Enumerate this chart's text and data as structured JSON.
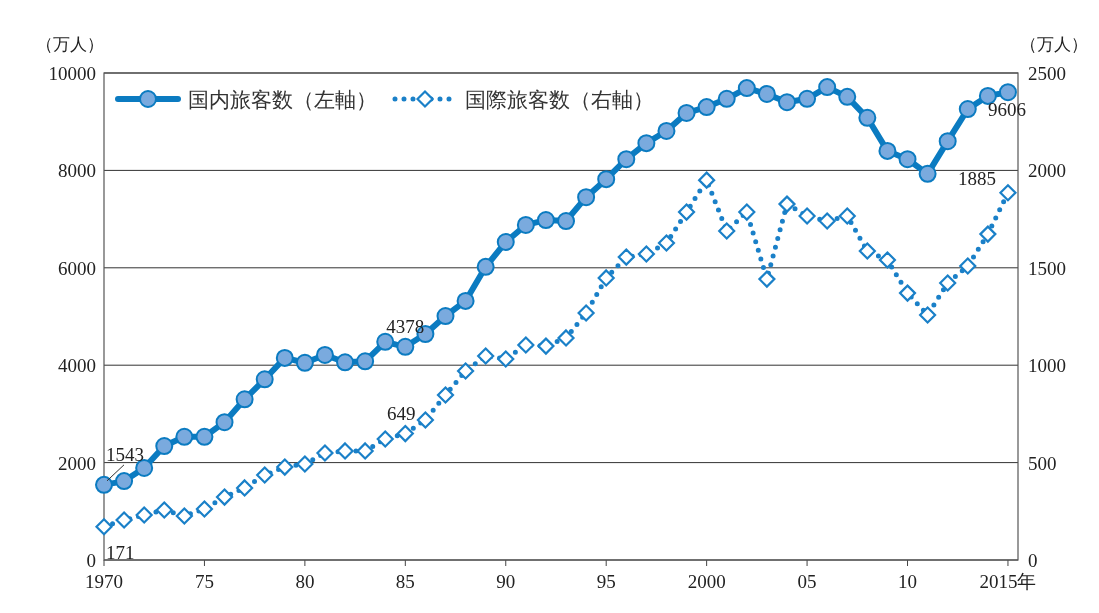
{
  "chart_data": {
    "type": "line",
    "ylabel": "（万人）",
    "y2label": "（万人）",
    "x": [
      1970,
      1971,
      1972,
      1973,
      1974,
      1975,
      1976,
      1977,
      1978,
      1979,
      1980,
      1981,
      1982,
      1983,
      1984,
      1985,
      1986,
      1987,
      1988,
      1989,
      1990,
      1991,
      1992,
      1993,
      1994,
      1995,
      1996,
      1997,
      1998,
      1999,
      2000,
      2001,
      2002,
      2003,
      2004,
      2005,
      2006,
      2007,
      2008,
      2009,
      2010,
      2011,
      2012,
      2013,
      2014,
      2015
    ],
    "xlim": [
      1970,
      2015.5
    ],
    "xticks": [
      1970,
      {
        "value": 1975,
        "label": "75"
      },
      {
        "value": 1980,
        "label": "80"
      },
      {
        "value": 1985,
        "label": "85"
      },
      {
        "value": 1990,
        "label": "90"
      },
      {
        "value": 1995,
        "label": "95"
      },
      2000,
      {
        "value": 2005,
        "label": "05"
      },
      {
        "value": 2010,
        "label": "10"
      },
      {
        "value": 2015,
        "label": "2015年"
      }
    ],
    "ylim": [
      0,
      10000
    ],
    "yticks": [
      0,
      2000,
      4000,
      6000,
      8000,
      10000
    ],
    "y2lim": [
      0,
      2500
    ],
    "y2ticks": [
      0,
      500,
      1000,
      1500,
      2000,
      2500
    ],
    "grid": "y",
    "legend": "top left",
    "series": [
      {
        "name": "国内旅客数（左軸）",
        "color": "#0b7bc1",
        "marker": "circle",
        "line_style": "solid",
        "values": [
          1543,
          1620,
          1890,
          2340,
          2530,
          2530,
          2830,
          3300,
          3710,
          4150,
          4050,
          4210,
          4060,
          4080,
          4480,
          4378,
          4640,
          5010,
          5320,
          6020,
          6530,
          6880,
          6980,
          6960,
          7450,
          7820,
          8230,
          8560,
          8810,
          9180,
          9300,
          9470,
          9690,
          9570,
          9400,
          9470,
          9710,
          9510,
          9080,
          8400,
          8230,
          7930,
          8600,
          9260,
          9530,
          9606
        ],
        "value_labels": [
          "1543",
          null,
          null,
          null,
          null,
          null,
          null,
          null,
          null,
          null,
          null,
          null,
          null,
          null,
          null,
          "4378",
          null,
          null,
          null,
          null,
          null,
          null,
          null,
          null,
          null,
          null,
          null,
          null,
          null,
          null,
          null,
          null,
          null,
          null,
          null,
          null,
          null,
          null,
          null,
          null,
          null,
          null,
          null,
          null,
          null,
          "9606"
        ]
      },
      {
        "name": "国際旅客数（右軸）",
        "color": "#1a80c8",
        "marker": "diamond",
        "line_style": "dotted",
        "axis": "y2",
        "values": [
          171,
          205,
          231,
          257,
          226,
          262,
          323,
          370,
          436,
          477,
          493,
          549,
          560,
          560,
          621,
          649,
          719,
          847,
          970,
          1047,
          1032,
          1104,
          1098,
          1140,
          1268,
          1448,
          1555,
          1571,
          1627,
          1786,
          1950,
          1689,
          1786,
          1442,
          1827,
          1766,
          1740,
          1766,
          1586,
          1540,
          1370,
          1258,
          1422,
          1509,
          1673,
          1885
        ],
        "value_labels": [
          "171",
          null,
          null,
          null,
          null,
          null,
          null,
          null,
          null,
          null,
          null,
          null,
          null,
          null,
          null,
          "649",
          null,
          null,
          null,
          null,
          null,
          null,
          null,
          null,
          null,
          null,
          null,
          null,
          null,
          null,
          null,
          null,
          null,
          null,
          null,
          null,
          null,
          null,
          null,
          null,
          null,
          null,
          null,
          null,
          null,
          "1885"
        ]
      }
    ]
  }
}
